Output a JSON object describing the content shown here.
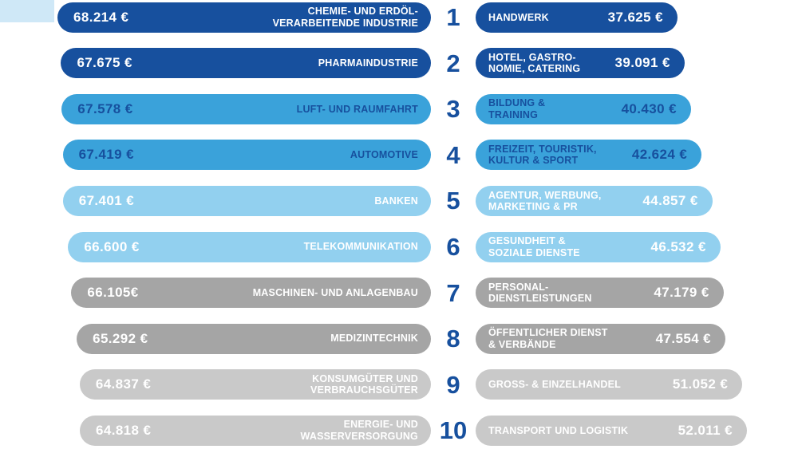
{
  "decor": {
    "corner_color": "#cfe8f7"
  },
  "chart_data": {
    "type": "bar",
    "layout": "ranked-two-sided-horizontal-bars",
    "rank_color": "#17509e",
    "legend": "off",
    "grid": "off",
    "rows": [
      {
        "rank": "1",
        "bar_color": "#17509e",
        "text_color": "#ffffff",
        "left": {
          "value": "68.214 €",
          "value_num": 68214,
          "label": "CHEMIE- UND ERDÖL-\nVERARBEITENDE INDUSTRIE"
        },
        "right": {
          "value": "37.625 €",
          "value_num": 37625,
          "label": "HANDWERK"
        }
      },
      {
        "rank": "2",
        "bar_color": "#17509e",
        "text_color": "#ffffff",
        "left": {
          "value": "67.675 €",
          "value_num": 67675,
          "label": "PHARMAINDUSTRIE"
        },
        "right": {
          "value": "39.091 €",
          "value_num": 39091,
          "label": "HOTEL, GASTRO-\nNOMIE, CATERING"
        }
      },
      {
        "rank": "3",
        "bar_color": "#3aa2da",
        "text_color": "#17509e",
        "left": {
          "value": "67.578 €",
          "value_num": 67578,
          "label": "LUFT- UND RAUMFAHRT"
        },
        "right": {
          "value": "40.430 €",
          "value_num": 40430,
          "label": "BILDUNG &\nTRAINING"
        }
      },
      {
        "rank": "4",
        "bar_color": "#3aa2da",
        "text_color": "#17509e",
        "left": {
          "value": "67.419 €",
          "value_num": 67419,
          "label": "AUTOMOTIVE"
        },
        "right": {
          "value": "42.624 €",
          "value_num": 42624,
          "label": "FREIZEIT, TOURISTIK,\nKULTUR & SPORT"
        }
      },
      {
        "rank": "5",
        "bar_color": "#92d0ef",
        "text_color": "#ffffff",
        "left": {
          "value": "67.401 €",
          "value_num": 67401,
          "label": "BANKEN"
        },
        "right": {
          "value": "44.857 €",
          "value_num": 44857,
          "label": "AGENTUR, WERBUNG,\nMARKETING & PR"
        }
      },
      {
        "rank": "6",
        "bar_color": "#92d0ef",
        "text_color": "#ffffff",
        "left": {
          "value": "66.600 €",
          "value_num": 66600,
          "label": "TELEKOMMUNIKATION"
        },
        "right": {
          "value": "46.532 €",
          "value_num": 46532,
          "label": "GESUNDHEIT &\nSOZIALE DIENSTE"
        }
      },
      {
        "rank": "7",
        "bar_color": "#a5a5a5",
        "text_color": "#ffffff",
        "left": {
          "value": "66.105€",
          "value_num": 66105,
          "label": "MASCHINEN- UND ANLAGENBAU"
        },
        "right": {
          "value": "47.179 €",
          "value_num": 47179,
          "label": "PERSONAL-\nDIENSTLEISTUNGEN"
        }
      },
      {
        "rank": "8",
        "bar_color": "#a5a5a5",
        "text_color": "#ffffff",
        "left": {
          "value": "65.292 €",
          "value_num": 65292,
          "label": "MEDIZINTECHNIK"
        },
        "right": {
          "value": "47.554 €",
          "value_num": 47554,
          "label": "ÖFFENTLICHER DIENST\n& VERBÄNDE"
        }
      },
      {
        "rank": "9",
        "bar_color": "#c9c9c9",
        "text_color": "#ffffff",
        "left": {
          "value": "64.837 €",
          "value_num": 64837,
          "label": "KONSUMGÜTER UND\nVERBRAUCHSGÜTER"
        },
        "right": {
          "value": "51.052 €",
          "value_num": 51052,
          "label": "GROSS- & EINZELHANDEL"
        }
      },
      {
        "rank": "10",
        "bar_color": "#c9c9c9",
        "text_color": "#ffffff",
        "left": {
          "value": "64.818 €",
          "value_num": 64818,
          "label": "ENERGIE- UND\nWASSERVERSORGUNG"
        },
        "right": {
          "value": "52.011 €",
          "value_num": 52011,
          "label": "TRANSPORT UND LOGISTIK"
        }
      }
    ]
  }
}
